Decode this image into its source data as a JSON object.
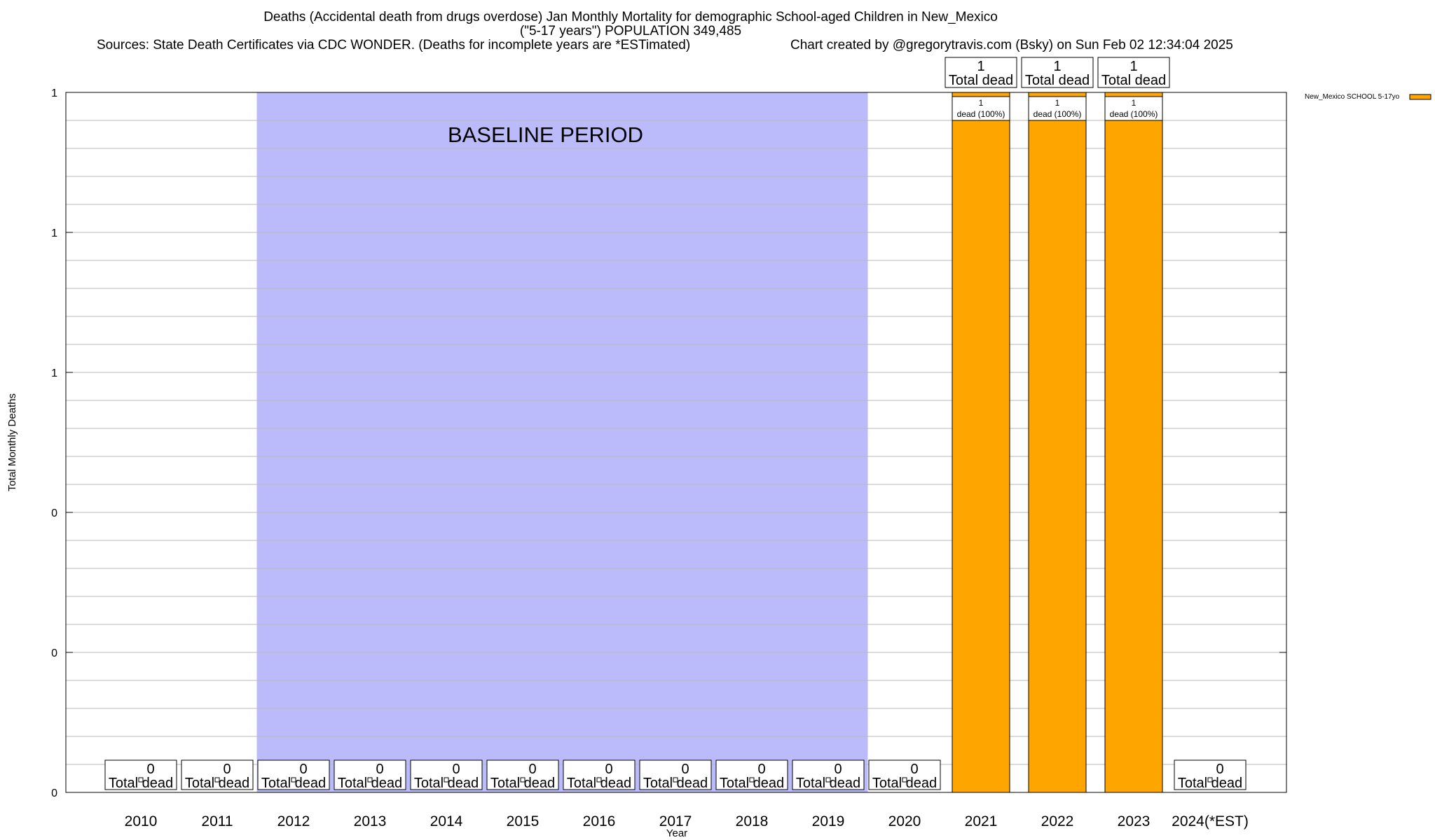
{
  "header": {
    "title_line1": "Deaths (Accidental death from drugs overdose) Jan Monthly Mortality for demographic School-aged Children in New_Mexico",
    "title_line2": "(\"5-17 years\") POPULATION 349,485",
    "sources": "Sources: State Death Certificates via CDC WONDER. (Deaths for incomplete years are *ESTimated)",
    "credit": "Chart created by @gregorytravis.com (Bsky) on Sun Feb 02 12:34:04 2025"
  },
  "chart_data": {
    "type": "bar",
    "title": "Deaths (Accidental death from drugs overdose) Jan Monthly Mortality for demographic School-aged Children in New_Mexico",
    "xlabel": "Year",
    "ylabel": "Total Monthly Deaths",
    "categories": [
      "2010",
      "2011",
      "2012",
      "2013",
      "2014",
      "2015",
      "2016",
      "2017",
      "2018",
      "2019",
      "2020",
      "2021",
      "2022",
      "2023",
      "2024(*EST)"
    ],
    "series": [
      {
        "name": "New_Mexico SCHOOL 5-17yo",
        "color": "#ffa500",
        "values": [
          0,
          0,
          0,
          0,
          0,
          0,
          0,
          0,
          0,
          0,
          0,
          1,
          1,
          1,
          0
        ]
      }
    ],
    "ylim": [
      0,
      1
    ],
    "y_tick_values": [
      0,
      0.2,
      0.4,
      0.6,
      0.8,
      1
    ],
    "y_tick_labels": [
      "0",
      "0",
      "0",
      "1",
      "1",
      "1"
    ],
    "total_label_word": "Total dead",
    "segment_labels": [
      "1",
      "dead (100%)"
    ],
    "baseline": {
      "label": "BASELINE PERIOD",
      "start": "2012",
      "end": "2019",
      "color": "#bbbbfb"
    },
    "legend": {
      "label": "New_Mexico SCHOOL 5-17yo",
      "placement": "top-right outside"
    },
    "grid": true
  }
}
